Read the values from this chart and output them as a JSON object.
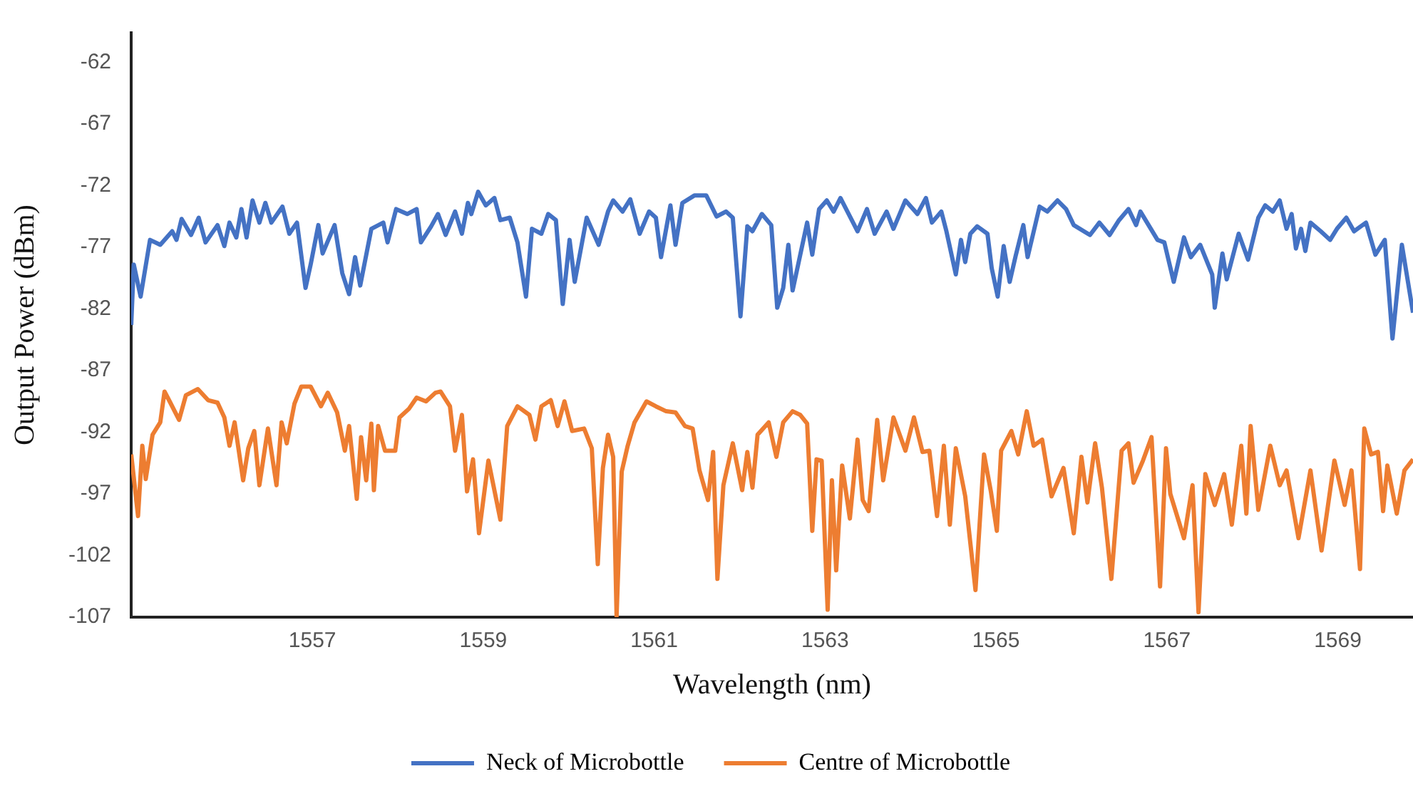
{
  "chart_data": {
    "type": "line",
    "xlabel": "Wavelength (nm)",
    "ylabel": "Output Power (dBm)",
    "xlim": [
      1554.88,
      1569.88
    ],
    "xticks": [
      1557,
      1559,
      1561,
      1563,
      1565,
      1567,
      1569
    ],
    "ylim": [
      -107,
      -59.6
    ],
    "yticks": [
      -62,
      -67,
      -72,
      -77,
      -82,
      -87,
      -92,
      -97,
      -102,
      -107
    ],
    "grid": false,
    "legend": "bottom",
    "marker": "none",
    "line_style": "solid",
    "series": [
      {
        "name": "Neck of Microbottle",
        "color": "#4472c4",
        "x": [
          1554.88,
          1554.91,
          1554.99,
          1555.1,
          1555.22,
          1555.36,
          1555.41,
          1555.47,
          1555.58,
          1555.67,
          1555.75,
          1555.89,
          1555.97,
          1556.03,
          1556.11,
          1556.17,
          1556.23,
          1556.3,
          1556.38,
          1556.45,
          1556.52,
          1556.65,
          1556.73,
          1556.82,
          1556.92,
          1556.98,
          1557.07,
          1557.12,
          1557.26,
          1557.35,
          1557.43,
          1557.5,
          1557.56,
          1557.69,
          1557.83,
          1557.88,
          1557.98,
          1558.11,
          1558.22,
          1558.27,
          1558.39,
          1558.47,
          1558.56,
          1558.67,
          1558.75,
          1558.82,
          1558.86,
          1558.94,
          1559.03,
          1559.13,
          1559.2,
          1559.31,
          1559.4,
          1559.5,
          1559.57,
          1559.68,
          1559.76,
          1559.85,
          1559.93,
          1560.01,
          1560.07,
          1560.21,
          1560.35,
          1560.46,
          1560.52,
          1560.63,
          1560.72,
          1560.83,
          1560.94,
          1561.02,
          1561.08,
          1561.19,
          1561.25,
          1561.33,
          1561.47,
          1561.61,
          1561.73,
          1561.84,
          1561.92,
          1562.01,
          1562.09,
          1562.15,
          1562.26,
          1562.37,
          1562.44,
          1562.51,
          1562.57,
          1562.62,
          1562.79,
          1562.85,
          1562.93,
          1563.02,
          1563.1,
          1563.18,
          1563.38,
          1563.49,
          1563.58,
          1563.72,
          1563.8,
          1563.94,
          1564.08,
          1564.18,
          1564.25,
          1564.36,
          1564.42,
          1564.53,
          1564.59,
          1564.64,
          1564.7,
          1564.78,
          1564.9,
          1564.95,
          1565.02,
          1565.09,
          1565.16,
          1565.23,
          1565.32,
          1565.37,
          1565.51,
          1565.6,
          1565.72,
          1565.82,
          1565.91,
          1566.1,
          1566.21,
          1566.33,
          1566.44,
          1566.55,
          1566.64,
          1566.69,
          1566.89,
          1566.97,
          1567.08,
          1567.2,
          1567.28,
          1567.39,
          1567.53,
          1567.56,
          1567.65,
          1567.7,
          1567.84,
          1567.95,
          1568.07,
          1568.15,
          1568.24,
          1568.32,
          1568.4,
          1568.46,
          1568.51,
          1568.57,
          1568.62,
          1568.68,
          1568.8,
          1568.91,
          1568.99,
          1569.1,
          1569.19,
          1569.33,
          1569.44,
          1569.55,
          1569.64,
          1569.75,
          1569.88
        ],
        "values": [
          -83.3,
          -78.4,
          -81.0,
          -76.4,
          -76.8,
          -75.7,
          -76.4,
          -74.7,
          -76.0,
          -74.6,
          -76.6,
          -75.2,
          -76.9,
          -75.0,
          -76.2,
          -73.9,
          -76.2,
          -73.2,
          -75.0,
          -73.4,
          -75.0,
          -73.7,
          -75.9,
          -75.0,
          -80.3,
          -78.4,
          -75.2,
          -77.5,
          -75.2,
          -79.1,
          -80.8,
          -77.8,
          -80.1,
          -75.5,
          -75.0,
          -76.6,
          -73.9,
          -74.3,
          -73.9,
          -76.6,
          -75.3,
          -74.3,
          -76.0,
          -74.1,
          -75.9,
          -73.4,
          -74.3,
          -72.5,
          -73.6,
          -73.0,
          -74.8,
          -74.6,
          -76.6,
          -81.0,
          -75.5,
          -75.9,
          -74.3,
          -74.8,
          -81.6,
          -76.4,
          -79.8,
          -74.6,
          -76.8,
          -74.1,
          -73.2,
          -74.1,
          -73.1,
          -75.9,
          -74.1,
          -74.6,
          -77.8,
          -73.6,
          -76.8,
          -73.4,
          -72.8,
          -72.8,
          -74.5,
          -74.1,
          -74.6,
          -82.6,
          -75.3,
          -75.7,
          -74.3,
          -75.2,
          -81.9,
          -80.3,
          -76.8,
          -80.5,
          -75.0,
          -77.6,
          -73.9,
          -73.2,
          -74.1,
          -73.0,
          -75.7,
          -73.9,
          -75.9,
          -74.1,
          -75.5,
          -73.2,
          -74.3,
          -73.0,
          -75.0,
          -74.1,
          -75.7,
          -79.2,
          -76.4,
          -78.2,
          -75.9,
          -75.3,
          -75.9,
          -78.7,
          -81.0,
          -76.9,
          -79.8,
          -77.7,
          -75.2,
          -77.8,
          -73.7,
          -74.1,
          -73.2,
          -73.9,
          -75.2,
          -76.0,
          -75.0,
          -76.0,
          -74.8,
          -73.9,
          -75.2,
          -74.1,
          -76.4,
          -76.6,
          -79.8,
          -76.2,
          -77.8,
          -76.8,
          -79.2,
          -81.9,
          -77.5,
          -79.6,
          -75.9,
          -78.0,
          -74.6,
          -73.6,
          -74.1,
          -73.2,
          -75.5,
          -74.3,
          -77.1,
          -75.5,
          -77.3,
          -75.0,
          -75.7,
          -76.4,
          -75.5,
          -74.6,
          -75.7,
          -75.0,
          -77.6,
          -76.4,
          -84.4,
          -76.8,
          -82.3
        ]
      },
      {
        "name": "Centre of Microbottle",
        "color": "#ed7d31",
        "x": [
          1554.88,
          1554.96,
          1555.01,
          1555.05,
          1555.13,
          1555.22,
          1555.27,
          1555.33,
          1555.44,
          1555.52,
          1555.66,
          1555.78,
          1555.89,
          1555.97,
          1556.03,
          1556.09,
          1556.19,
          1556.25,
          1556.32,
          1556.38,
          1556.48,
          1556.58,
          1556.64,
          1556.7,
          1556.79,
          1556.87,
          1556.98,
          1557.1,
          1557.18,
          1557.29,
          1557.38,
          1557.43,
          1557.52,
          1557.57,
          1557.63,
          1557.69,
          1557.72,
          1557.77,
          1557.85,
          1557.97,
          1558.02,
          1558.13,
          1558.22,
          1558.33,
          1558.44,
          1558.5,
          1558.61,
          1558.67,
          1558.75,
          1558.81,
          1558.88,
          1558.95,
          1559.06,
          1559.2,
          1559.28,
          1559.4,
          1559.54,
          1559.61,
          1559.68,
          1559.79,
          1559.87,
          1559.95,
          1560.04,
          1560.18,
          1560.27,
          1560.34,
          1560.4,
          1560.46,
          1560.52,
          1560.56,
          1560.62,
          1560.69,
          1560.77,
          1560.91,
          1561.02,
          1561.14,
          1561.25,
          1561.36,
          1561.45,
          1561.53,
          1561.63,
          1561.69,
          1561.74,
          1561.81,
          1561.92,
          1562.03,
          1562.09,
          1562.15,
          1562.21,
          1562.34,
          1562.43,
          1562.51,
          1562.62,
          1562.71,
          1562.79,
          1562.85,
          1562.9,
          1562.96,
          1563.03,
          1563.08,
          1563.13,
          1563.2,
          1563.29,
          1563.38,
          1563.44,
          1563.51,
          1563.61,
          1563.68,
          1563.8,
          1563.94,
          1564.04,
          1564.14,
          1564.22,
          1564.31,
          1564.39,
          1564.46,
          1564.53,
          1564.64,
          1564.76,
          1564.86,
          1564.94,
          1565.01,
          1565.06,
          1565.18,
          1565.26,
          1565.36,
          1565.44,
          1565.54,
          1565.65,
          1565.79,
          1565.91,
          1566.0,
          1566.07,
          1566.16,
          1566.24,
          1566.35,
          1566.47,
          1566.55,
          1566.61,
          1566.72,
          1566.82,
          1566.92,
          1566.99,
          1567.04,
          1567.2,
          1567.3,
          1567.37,
          1567.45,
          1567.56,
          1567.67,
          1567.76,
          1567.87,
          1567.93,
          1567.98,
          1568.07,
          1568.21,
          1568.32,
          1568.4,
          1568.54,
          1568.68,
          1568.81,
          1568.96,
          1569.08,
          1569.16,
          1569.26,
          1569.31,
          1569.39,
          1569.47,
          1569.53,
          1569.58,
          1569.69,
          1569.78,
          1569.88
        ],
        "values": [
          -93.8,
          -98.8,
          -93.1,
          -95.8,
          -92.2,
          -91.2,
          -88.7,
          -89.5,
          -91.0,
          -89.0,
          -88.5,
          -89.4,
          -89.6,
          -90.8,
          -93.1,
          -91.2,
          -95.9,
          -93.3,
          -91.9,
          -96.3,
          -91.7,
          -96.3,
          -91.2,
          -92.9,
          -89.7,
          -88.3,
          -88.3,
          -89.9,
          -88.8,
          -90.4,
          -93.5,
          -91.5,
          -97.4,
          -92.4,
          -95.9,
          -91.3,
          -96.7,
          -91.5,
          -93.5,
          -93.5,
          -90.8,
          -90.1,
          -89.2,
          -89.5,
          -88.8,
          -88.7,
          -89.9,
          -93.5,
          -90.6,
          -96.8,
          -94.2,
          -100.2,
          -94.3,
          -99.1,
          -91.5,
          -89.9,
          -90.6,
          -92.6,
          -89.9,
          -89.4,
          -91.5,
          -89.5,
          -91.9,
          -91.7,
          -93.3,
          -102.7,
          -94.9,
          -92.2,
          -94.0,
          -106.9,
          -95.2,
          -93.1,
          -91.2,
          -89.5,
          -89.9,
          -90.3,
          -90.4,
          -91.5,
          -91.7,
          -95.1,
          -97.5,
          -93.6,
          -103.9,
          -96.3,
          -92.9,
          -96.7,
          -93.6,
          -96.5,
          -92.2,
          -91.2,
          -94.0,
          -91.2,
          -90.3,
          -90.6,
          -91.3,
          -100.0,
          -94.2,
          -94.3,
          -106.4,
          -95.9,
          -103.2,
          -94.7,
          -99.0,
          -92.6,
          -97.5,
          -98.4,
          -91.0,
          -95.9,
          -90.8,
          -93.5,
          -90.8,
          -93.6,
          -93.5,
          -98.8,
          -93.1,
          -99.5,
          -93.3,
          -97.2,
          -104.8,
          -93.8,
          -96.8,
          -100.0,
          -93.5,
          -91.9,
          -93.8,
          -90.3,
          -93.1,
          -92.6,
          -97.2,
          -94.9,
          -100.2,
          -94.0,
          -97.7,
          -92.9,
          -96.5,
          -103.9,
          -93.5,
          -92.9,
          -96.1,
          -94.3,
          -92.4,
          -104.5,
          -93.3,
          -97.0,
          -100.6,
          -96.3,
          -106.6,
          -95.4,
          -97.9,
          -95.4,
          -99.5,
          -93.1,
          -98.6,
          -91.5,
          -98.3,
          -93.1,
          -96.3,
          -95.1,
          -100.6,
          -95.1,
          -101.6,
          -94.3,
          -97.9,
          -95.1,
          -103.1,
          -91.7,
          -93.8,
          -93.6,
          -98.4,
          -94.7,
          -98.6,
          -95.1,
          -94.2
        ]
      }
    ]
  }
}
